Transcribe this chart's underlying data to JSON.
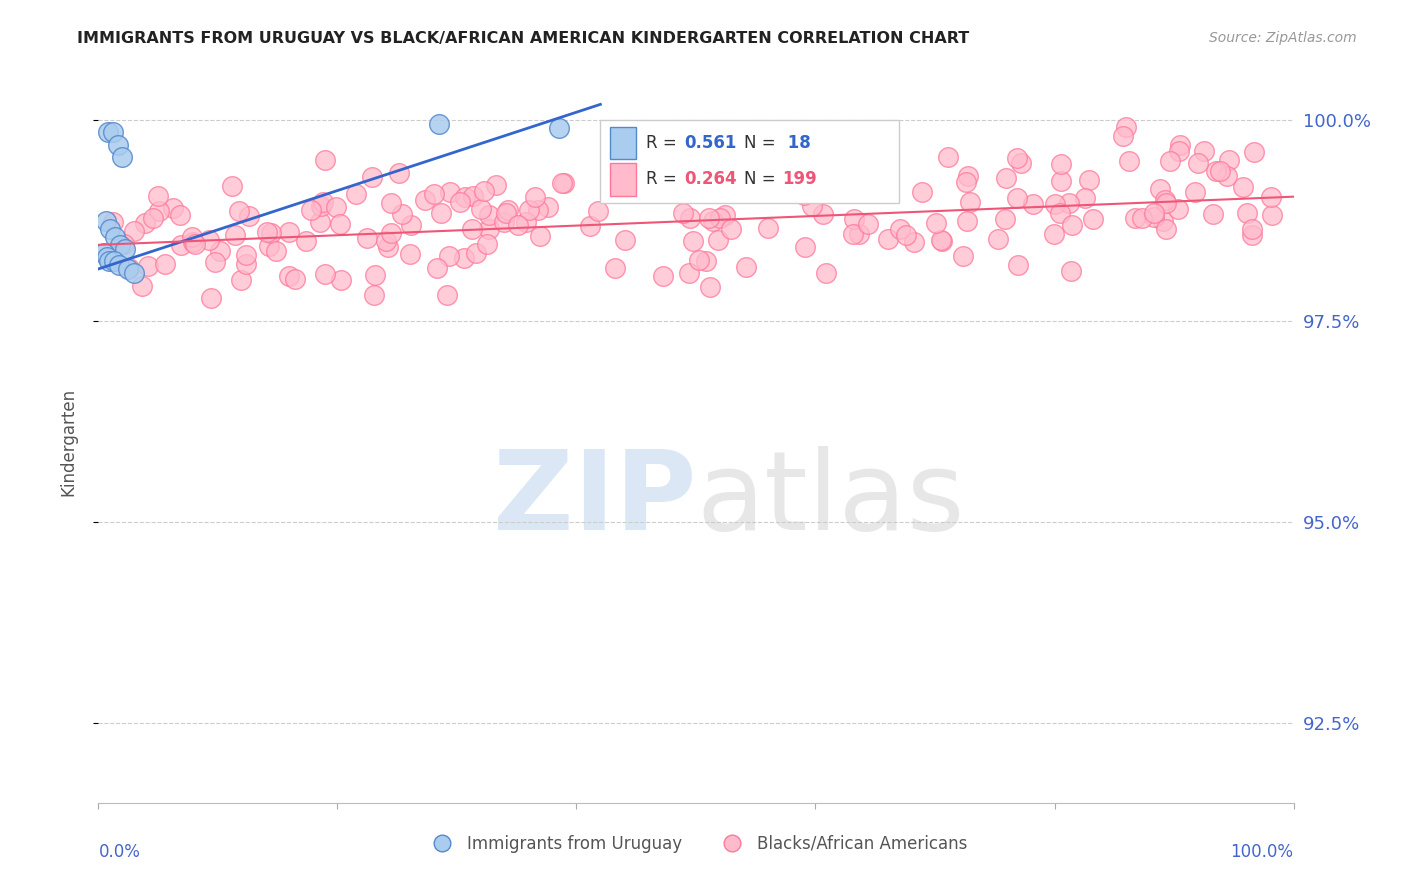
{
  "title": "IMMIGRANTS FROM URUGUAY VS BLACK/AFRICAN AMERICAN KINDERGARTEN CORRELATION CHART",
  "source": "Source: ZipAtlas.com",
  "ylabel": "Kindergarten",
  "xlim": [
    0.0,
    1.0
  ],
  "ylim": [
    0.915,
    1.005
  ],
  "yticks": [
    0.925,
    0.95,
    0.975,
    1.0
  ],
  "right_ytick_labels": [
    "92.5%",
    "95.0%",
    "97.5%",
    "100.0%"
  ],
  "blue_color": "#aaccee",
  "blue_edge_color": "#5588cc",
  "pink_color": "#ffbbcc",
  "pink_edge_color": "#ff7799",
  "blue_line_color": "#3366cc",
  "pink_line_color": "#ee5577",
  "title_color": "#222222",
  "source_color": "#999999",
  "right_axis_color": "#4466cc",
  "legend_label_blue": "Immigrants from Uruguay",
  "legend_label_pink": "Blacks/African Americans",
  "blue_trend_x": [
    0.0,
    0.42
  ],
  "blue_trend_y": [
    0.9815,
    1.002
  ],
  "pink_trend_x": [
    0.0,
    1.0
  ],
  "pink_trend_y": [
    0.9845,
    0.9905
  ]
}
